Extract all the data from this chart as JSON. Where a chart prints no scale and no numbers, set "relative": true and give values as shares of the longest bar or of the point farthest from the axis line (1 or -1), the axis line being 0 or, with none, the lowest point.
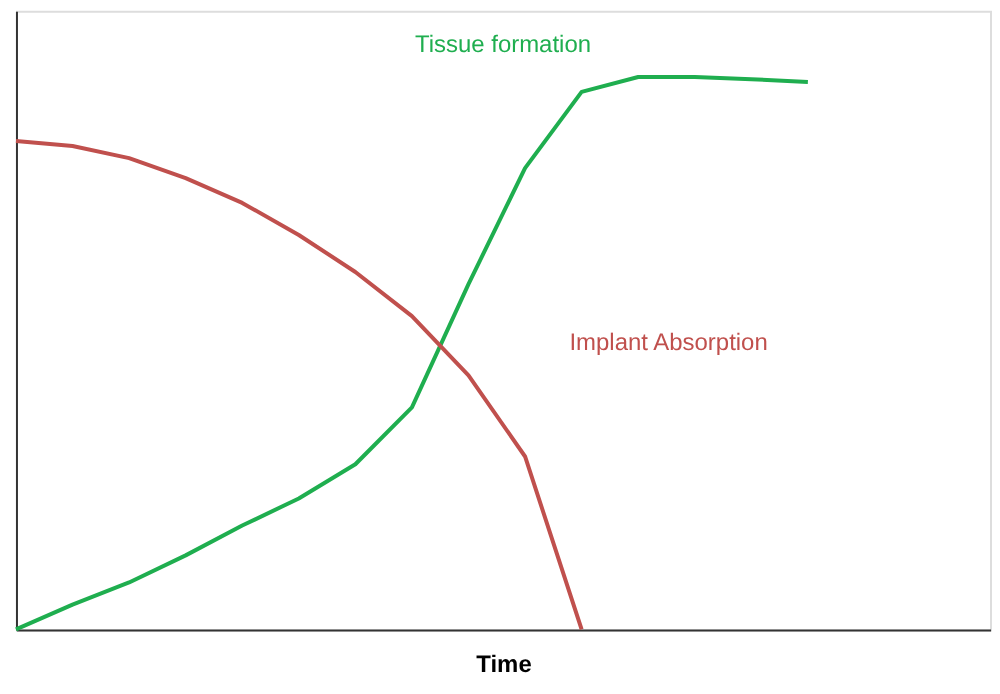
{
  "chart_data": {
    "type": "line",
    "relative": true,
    "xlabel": "Time",
    "grid": false,
    "marker": "none",
    "line_style": "solid",
    "categories": [
      null,
      null,
      null,
      null,
      null,
      null,
      null,
      null,
      null,
      null,
      null,
      null,
      null,
      null,
      null
    ],
    "series": [
      {
        "name": "Tissue formation",
        "color": "#1fae4f",
        "values": [
          0,
          0.045,
          0.085,
          0.134,
          0.188,
          0.237,
          0.299,
          0.402,
          0.625,
          0.835,
          0.973,
          1,
          1,
          0.996,
          0.991
        ]
      },
      {
        "name": "Implant Absorption",
        "color": "#c0504d",
        "values": [
          0.884,
          0.875,
          0.853,
          0.817,
          0.772,
          0.714,
          0.647,
          0.567,
          0.46,
          0.313,
          0,
          null,
          null,
          null,
          null
        ]
      }
    ]
  }
}
